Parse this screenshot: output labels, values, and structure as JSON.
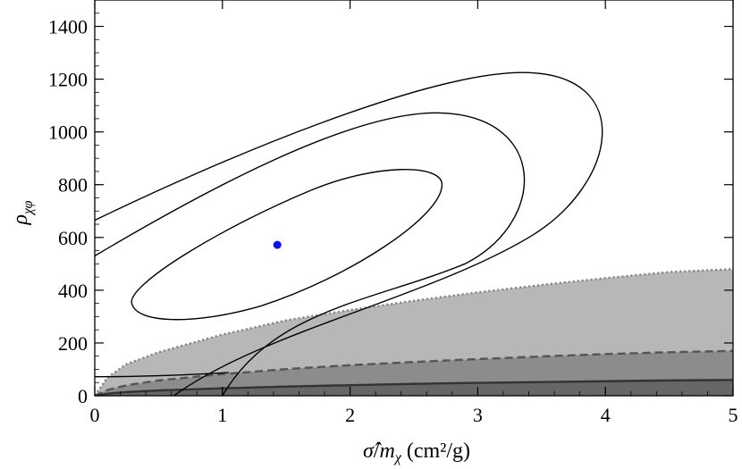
{
  "chart_data": {
    "type": "contour",
    "xlabel": "σ̂/m_χ (cm²/g)",
    "ylabel": "ρ_χφ",
    "xlim": [
      0,
      5
    ],
    "ylim": [
      0,
      1500
    ],
    "x_ticks": [
      0,
      1,
      2,
      3,
      4,
      5
    ],
    "y_ticks": [
      0,
      200,
      400,
      600,
      800,
      1000,
      1200,
      1400
    ],
    "grid": false,
    "legend": "none",
    "best_fit_point": {
      "x": 1.43,
      "y": 572,
      "color": "#0a14e6"
    },
    "contours": [
      {
        "level": 1,
        "kind": "closed",
        "x_range": [
          0.29,
          2.72
        ],
        "y_range": [
          280,
          865
        ],
        "points": [
          [
            1.43,
            572
          ],
          [
            2.72,
            800
          ],
          [
            2.55,
            865
          ],
          [
            1.9,
            820
          ],
          [
            0.64,
            490
          ],
          [
            0.29,
            350
          ],
          [
            0.45,
            280
          ],
          [
            1.0,
            300
          ],
          [
            2.0,
            450
          ],
          [
            2.72,
            800
          ]
        ]
      },
      {
        "level": 2,
        "kind": "open",
        "x_range": [
          0,
          3.45
        ],
        "y_range": [
          0,
          1075
        ],
        "points": [
          [
            0,
            530
          ],
          [
            0.5,
            700
          ],
          [
            1.5,
            920
          ],
          [
            2.6,
            1070
          ],
          [
            3.25,
            1020
          ],
          [
            3.45,
            780
          ],
          [
            3.1,
            560
          ],
          [
            2.5,
            420
          ],
          [
            1.5,
            330
          ],
          [
            1.0,
            0
          ]
        ]
      },
      {
        "level": 3,
        "kind": "open",
        "x_range": [
          0,
          4.02
        ],
        "y_range": [
          0,
          1225
        ],
        "points": [
          [
            0,
            665
          ],
          [
            0.5,
            810
          ],
          [
            1.5,
            1010
          ],
          [
            2.8,
            1205
          ],
          [
            3.75,
            1195
          ],
          [
            4.02,
            1000
          ],
          [
            3.8,
            720
          ],
          [
            3.1,
            520
          ],
          [
            2.0,
            330
          ],
          [
            1.2,
            220
          ],
          [
            0.62,
            0
          ]
        ]
      }
    ],
    "excluded_regions": [
      {
        "name": "",
        "style": "dotted",
        "fill": "#b7b7b7",
        "edge": "#808080",
        "y_at_x5": 480,
        "x": [
          0,
          0.1,
          0.25,
          0.5,
          1,
          1.5,
          2,
          2.5,
          3,
          3.5,
          4,
          4.5,
          5
        ],
        "y": [
          0,
          70,
          120,
          165,
          232,
          286,
          325,
          360,
          392,
          420,
          446,
          469,
          480
        ]
      },
      {
        "name": "",
        "style": "dashed",
        "fill": "#8c8c8c",
        "edge": "#555555",
        "y_at_x5": 170,
        "x": [
          0,
          0.1,
          0.25,
          0.5,
          1,
          1.5,
          2,
          2.5,
          3,
          3.5,
          4,
          4.5,
          5
        ],
        "y": [
          0,
          22,
          40,
          58,
          82,
          101,
          116,
          128,
          139,
          149,
          158,
          165,
          170
        ]
      },
      {
        "name": "",
        "style": "solid",
        "fill": "#666666",
        "edge": "#333333",
        "y_at_x5": 60,
        "x": [
          0,
          0.1,
          0.25,
          0.5,
          1,
          1.5,
          2,
          2.5,
          3,
          3.5,
          4,
          4.5,
          5
        ],
        "y": [
          0,
          8,
          14,
          20,
          28,
          35,
          40,
          45,
          49,
          52,
          55,
          58,
          60
        ]
      }
    ],
    "extra_line": {
      "style": "solid",
      "color": "#000000",
      "x_from": 0,
      "y_level": 72
    }
  }
}
